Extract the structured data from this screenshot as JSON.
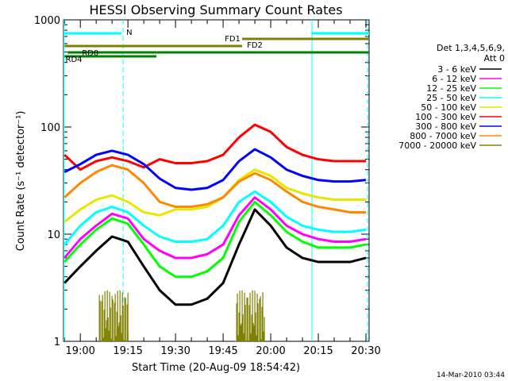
{
  "chart_data": {
    "type": "line",
    "title": "HESSI Observing Summary Count Rates",
    "xlabel": "Start Time (20-Aug-09 18:54:42)",
    "ylabel": "Count Rate (s⁻¹ detector⁻¹)",
    "y_scale": "log",
    "ylim": [
      1,
      1000
    ],
    "xlim": [
      "18:54:42",
      "20:31:00"
    ],
    "x_tick_labels": [
      "19:00",
      "19:15",
      "19:30",
      "19:45",
      "20:00",
      "20:15",
      "20:30"
    ],
    "y_tick_labels": [
      "1",
      "10",
      "100",
      "1000"
    ],
    "legend_header": [
      "Det 1,3,4,5,6,9,",
      "Att 0"
    ],
    "grid": false,
    "legend_placement": "right",
    "series": [
      {
        "name": "3 - 6 keV",
        "color": "#000000",
        "x": [
          "18:55",
          "19:00",
          "19:05",
          "19:10",
          "19:15",
          "19:20",
          "19:25",
          "19:30",
          "19:35",
          "19:40",
          "19:45",
          "19:50",
          "19:55",
          "20:00",
          "20:05",
          "20:10",
          "20:15",
          "20:20",
          "20:25",
          "20:30"
        ],
        "values": [
          3.5,
          5,
          7,
          9.5,
          8.5,
          5,
          3,
          2.2,
          2.2,
          2.5,
          3.5,
          8,
          17,
          12,
          7.5,
          6,
          5.5,
          5.5,
          5.5,
          6
        ]
      },
      {
        "name": "6 - 12 keV",
        "color": "#ff00ff",
        "x": [
          "18:55",
          "19:00",
          "19:05",
          "19:10",
          "19:15",
          "19:20",
          "19:25",
          "19:30",
          "19:35",
          "19:40",
          "19:45",
          "19:50",
          "19:55",
          "20:00",
          "20:05",
          "20:10",
          "20:15",
          "20:20",
          "20:25",
          "20:30"
        ],
        "values": [
          6,
          9,
          12,
          15.5,
          14,
          9,
          7,
          6,
          6,
          6.5,
          8,
          15,
          22,
          17,
          12,
          10,
          9,
          8.5,
          8.5,
          9
        ]
      },
      {
        "name": "12 - 25 keV",
        "color": "#00ff00",
        "x": [
          "18:55",
          "19:00",
          "19:05",
          "19:10",
          "19:15",
          "19:20",
          "19:25",
          "19:30",
          "19:35",
          "19:40",
          "19:45",
          "19:50",
          "19:55",
          "20:00",
          "20:05",
          "20:10",
          "20:15",
          "20:20",
          "20:25",
          "20:30"
        ],
        "values": [
          5.5,
          8,
          11,
          14,
          12.5,
          8,
          5,
          4,
          4,
          4.5,
          6,
          13,
          20,
          15,
          10.5,
          8.5,
          7.5,
          7.5,
          7.5,
          8
        ]
      },
      {
        "name": "25 - 50 keV",
        "color": "#00ffff",
        "x": [
          "18:55",
          "19:00",
          "19:05",
          "19:10",
          "19:15",
          "19:20",
          "19:25",
          "19:30",
          "19:35",
          "19:40",
          "19:45",
          "19:50",
          "19:55",
          "20:00",
          "20:05",
          "20:10",
          "20:15",
          "20:20",
          "20:25",
          "20:30"
        ],
        "values": [
          8,
          12,
          16,
          18,
          16,
          12,
          9.5,
          8.5,
          8.5,
          9,
          12,
          20,
          25,
          20,
          14.5,
          12,
          11,
          10.5,
          10.5,
          11
        ]
      },
      {
        "name": "50 - 100 keV",
        "color": "#e6e600",
        "x": [
          "18:55",
          "19:00",
          "19:05",
          "19:10",
          "19:15",
          "19:20",
          "19:25",
          "19:30",
          "19:35",
          "19:40",
          "19:45",
          "19:50",
          "19:55",
          "20:00",
          "20:05",
          "20:10",
          "20:15",
          "20:20",
          "20:25",
          "20:30"
        ],
        "values": [
          13,
          17,
          21,
          23,
          20,
          16,
          15,
          17,
          17,
          18,
          22,
          32,
          40,
          35,
          27,
          24,
          22,
          21,
          21,
          21
        ]
      },
      {
        "name": "100 - 300 keV",
        "color": "#ff0000",
        "x": [
          "18:55",
          "19:00",
          "19:05",
          "19:10",
          "19:15",
          "19:20",
          "19:25",
          "19:30",
          "19:35",
          "19:40",
          "19:45",
          "19:50",
          "19:55",
          "20:00",
          "20:05",
          "20:10",
          "20:15",
          "20:20",
          "20:25",
          "20:30"
        ],
        "values": [
          55,
          40,
          48,
          52,
          48,
          42,
          50,
          46,
          46,
          48,
          55,
          80,
          105,
          90,
          65,
          55,
          50,
          48,
          48,
          48
        ]
      },
      {
        "name": "300 - 800 keV",
        "color": "#0000ff",
        "x": [
          "18:55",
          "19:00",
          "19:05",
          "19:10",
          "19:15",
          "19:20",
          "19:25",
          "19:30",
          "19:35",
          "19:40",
          "19:45",
          "19:50",
          "19:55",
          "20:00",
          "20:05",
          "20:10",
          "20:15",
          "20:20",
          "20:25",
          "20:30"
        ],
        "values": [
          38,
          45,
          55,
          60,
          55,
          45,
          33,
          27,
          26,
          27,
          32,
          48,
          62,
          52,
          40,
          35,
          32,
          31,
          31,
          32
        ]
      },
      {
        "name": "800 - 7000 keV",
        "color": "#ff8800",
        "x": [
          "18:55",
          "19:00",
          "19:05",
          "19:10",
          "19:15",
          "19:20",
          "19:25",
          "19:30",
          "19:35",
          "19:40",
          "19:45",
          "19:50",
          "19:55",
          "20:00",
          "20:05",
          "20:10",
          "20:15",
          "20:20",
          "20:25",
          "20:30"
        ],
        "values": [
          22,
          30,
          38,
          44,
          40,
          30,
          20,
          18,
          18,
          19,
          22,
          31,
          37,
          32,
          25,
          20,
          18,
          17,
          16,
          16
        ]
      },
      {
        "name": "7000 - 20000 keV",
        "color": "#808000",
        "x": [
          "18:55",
          "19:00",
          "19:05",
          "19:10",
          "19:15",
          "19:20",
          "19:25",
          "19:30",
          "19:35",
          "19:40",
          "19:45",
          "19:50",
          "19:55",
          "20:00",
          "20:05",
          "20:10",
          "20:15",
          "20:20",
          "20:25",
          "20:30"
        ],
        "values": [
          1,
          1,
          1,
          1,
          1,
          1,
          1,
          1,
          1,
          1,
          1,
          1,
          1,
          1,
          1,
          1,
          1,
          1,
          1,
          1
        ]
      }
    ],
    "flag_bars": [
      {
        "label": "N",
        "color": "#00ffff"
      },
      {
        "label": "FD1",
        "color": "#808000"
      },
      {
        "label": "FD2",
        "color": "#808000"
      },
      {
        "label": "RD0",
        "color": "#008000"
      },
      {
        "label": "RD4",
        "color": "#008000"
      }
    ],
    "footer_timestamp": "14-Mar-2010 03:44"
  }
}
